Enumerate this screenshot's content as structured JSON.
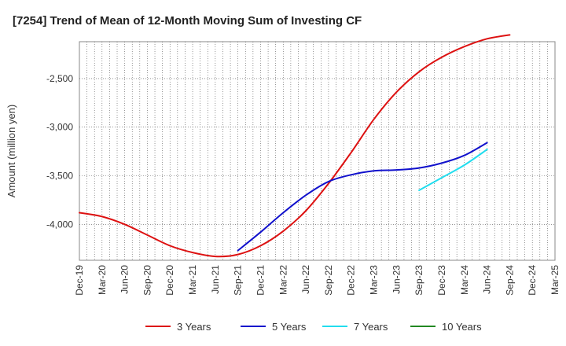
{
  "chart_data": {
    "type": "line",
    "title": "[7254]  Trend of Mean of 12-Month Moving Sum of Investing CF",
    "xlabel": "",
    "ylabel": "Amount (million yen)",
    "x_ticks": [
      "Dec-19",
      "Mar-20",
      "Jun-20",
      "Sep-20",
      "Dec-20",
      "Mar-21",
      "Jun-21",
      "Sep-21",
      "Dec-21",
      "Mar-22",
      "Jun-22",
      "Sep-22",
      "Dec-22",
      "Mar-23",
      "Jun-23",
      "Sep-23",
      "Dec-23",
      "Mar-24",
      "Jun-24",
      "Sep-24",
      "Dec-24",
      "Mar-25"
    ],
    "y_ticks": [
      -2500,
      -3000,
      -3500,
      -4000
    ],
    "ylim": [
      -4370,
      -2120
    ],
    "grid": true,
    "legend_position": "bottom",
    "series": [
      {
        "name": "3 Years",
        "color": "#dd1111",
        "points": [
          [
            "Dec-19",
            -3880
          ],
          [
            "Mar-20",
            -3920
          ],
          [
            "Jun-20",
            -4000
          ],
          [
            "Sep-20",
            -4110
          ],
          [
            "Dec-20",
            -4220
          ],
          [
            "Mar-21",
            -4290
          ],
          [
            "Jun-21",
            -4330
          ],
          [
            "Sep-21",
            -4310
          ],
          [
            "Dec-21",
            -4220
          ],
          [
            "Mar-22",
            -4070
          ],
          [
            "Jun-22",
            -3860
          ],
          [
            "Sep-22",
            -3580
          ],
          [
            "Dec-22",
            -3260
          ],
          [
            "Mar-23",
            -2920
          ],
          [
            "Jun-23",
            -2640
          ],
          [
            "Sep-23",
            -2430
          ],
          [
            "Dec-23",
            -2280
          ],
          [
            "Mar-24",
            -2170
          ],
          [
            "Jun-24",
            -2090
          ],
          [
            "Sep-24",
            -2050
          ]
        ]
      },
      {
        "name": "5 Years",
        "color": "#1111cc",
        "points": [
          [
            "Sep-21",
            -4270
          ],
          [
            "Dec-21",
            -4080
          ],
          [
            "Mar-22",
            -3880
          ],
          [
            "Jun-22",
            -3700
          ],
          [
            "Sep-22",
            -3560
          ],
          [
            "Dec-22",
            -3490
          ],
          [
            "Mar-23",
            -3450
          ],
          [
            "Jun-23",
            -3440
          ],
          [
            "Sep-23",
            -3420
          ],
          [
            "Dec-23",
            -3370
          ],
          [
            "Mar-24",
            -3290
          ],
          [
            "Jun-24",
            -3160
          ]
        ]
      },
      {
        "name": "7 Years",
        "color": "#22ddee",
        "points": [
          [
            "Sep-23",
            -3650
          ],
          [
            "Dec-23",
            -3520
          ],
          [
            "Mar-24",
            -3390
          ],
          [
            "Jun-24",
            -3230
          ]
        ]
      },
      {
        "name": "10 Years",
        "color": "#228822",
        "points": []
      }
    ]
  }
}
